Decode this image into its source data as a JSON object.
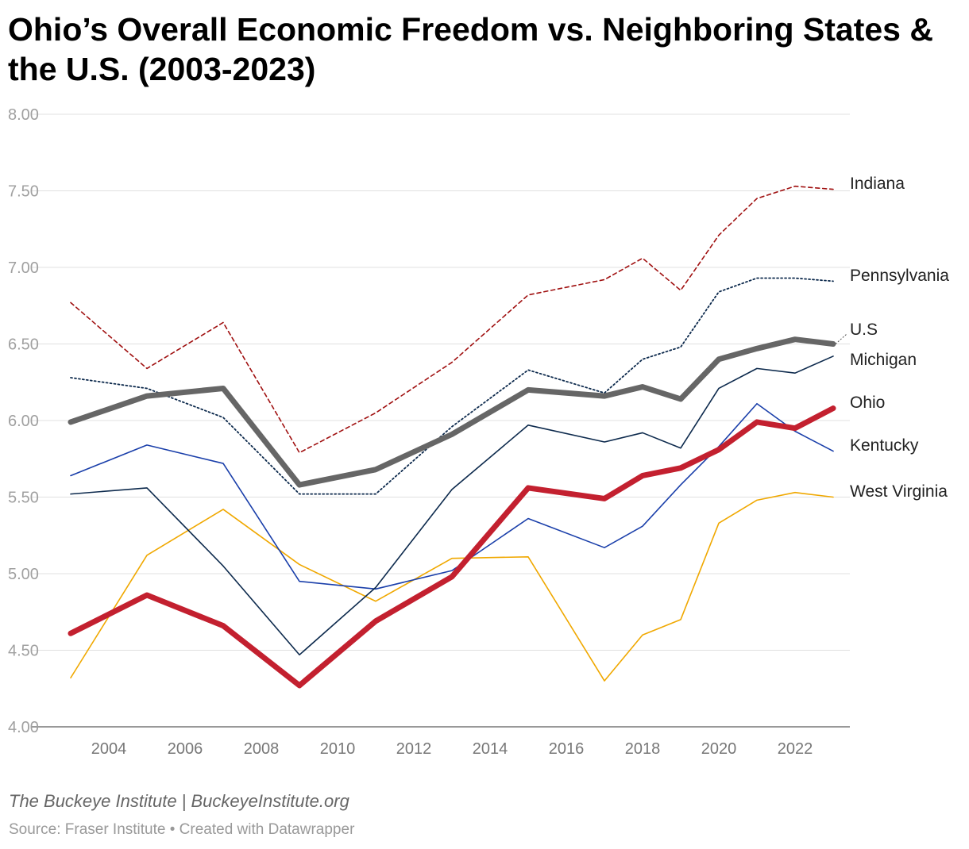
{
  "chart_data": {
    "type": "line",
    "title": "Ohio’s Overall Economic Freedom vs. Neighboring States & the U.S. (2003-2023)",
    "xlabel": "",
    "ylabel": "",
    "ylim": [
      4.0,
      8.0
    ],
    "xlim": [
      2003,
      2023
    ],
    "yticks": [
      "4.00",
      "4.50",
      "5.00",
      "5.50",
      "6.00",
      "6.50",
      "7.00",
      "7.50",
      "8.00"
    ],
    "xticks": [
      "2004",
      "2006",
      "2008",
      "2010",
      "2012",
      "2014",
      "2016",
      "2018",
      "2020",
      "2022"
    ],
    "grid": true,
    "legend": "direct labels at right",
    "x": [
      2003,
      2005,
      2007,
      2009,
      2011,
      2013,
      2015,
      2017,
      2018,
      2019,
      2020,
      2021,
      2022,
      2023
    ],
    "series": [
      {
        "name": "West Virginia",
        "color": "#f0a800",
        "style": "solid",
        "values": [
          4.32,
          5.12,
          5.42,
          5.06,
          4.82,
          5.1,
          5.11,
          4.3,
          4.6,
          4.7,
          5.33,
          5.48,
          5.53,
          5.5
        ]
      },
      {
        "name": "Kentucky",
        "color": "#1a3faa",
        "style": "solid",
        "values": [
          5.64,
          5.84,
          5.72,
          4.95,
          4.9,
          5.02,
          5.36,
          5.17,
          5.31,
          5.58,
          5.83,
          6.11,
          5.93,
          5.8
        ]
      },
      {
        "name": "Michigan",
        "color": "#0d2a4d",
        "style": "solid",
        "values": [
          5.52,
          5.56,
          5.05,
          4.47,
          4.91,
          5.55,
          5.97,
          5.86,
          5.92,
          5.82,
          6.21,
          6.34,
          6.31,
          6.42
        ]
      },
      {
        "name": "Pennsylvania",
        "color": "#0d2a4d",
        "style": "dotted",
        "values": [
          6.28,
          6.21,
          6.02,
          5.52,
          5.52,
          5.96,
          6.33,
          6.18,
          6.4,
          6.48,
          6.84,
          6.93,
          6.93,
          6.91
        ]
      },
      {
        "name": "Indiana",
        "color": "#a01010",
        "style": "dashed",
        "values": [
          6.77,
          6.34,
          6.64,
          5.79,
          6.05,
          6.38,
          6.82,
          6.92,
          7.06,
          6.85,
          7.21,
          7.45,
          7.53,
          7.51
        ]
      },
      {
        "name": "U.S",
        "color": "#666666",
        "style": "thick",
        "values": [
          5.99,
          6.16,
          6.21,
          5.58,
          5.68,
          5.91,
          6.2,
          6.16,
          6.22,
          6.14,
          6.4,
          6.47,
          6.53,
          6.5
        ]
      },
      {
        "name": "Ohio",
        "color": "#c3202f",
        "style": "thick",
        "values": [
          4.61,
          4.86,
          4.66,
          4.27,
          4.69,
          4.98,
          5.56,
          5.49,
          5.64,
          5.69,
          5.81,
          5.99,
          5.95,
          6.08
        ]
      }
    ]
  },
  "footer": {
    "byline": "The Buckeye Institute | BuckeyeInstitute.org",
    "source": "Source: Fraser Institute • Created with Datawrapper"
  }
}
